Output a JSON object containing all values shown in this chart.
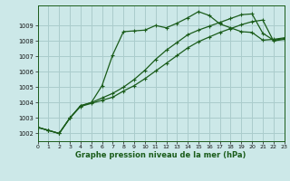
{
  "title": "Graphe pression niveau de la mer (hPa)",
  "bg": "#cce8e8",
  "grid_color": "#aacccc",
  "lc_dark": "#1a5c1a",
  "lc_light": "#2e7d2e",
  "xlim": [
    0,
    23
  ],
  "ylim": [
    1001.5,
    1010.3
  ],
  "yticks": [
    1002,
    1003,
    1004,
    1005,
    1006,
    1007,
    1008,
    1009
  ],
  "xticks": [
    0,
    1,
    2,
    3,
    4,
    5,
    6,
    7,
    8,
    9,
    10,
    11,
    12,
    13,
    14,
    15,
    16,
    17,
    18,
    19,
    20,
    21,
    22,
    23
  ],
  "s1": [
    1002.4,
    1002.2,
    1002.0,
    1003.0,
    1003.8,
    1004.0,
    1005.1,
    1007.1,
    1008.6,
    1008.65,
    1008.7,
    1009.0,
    1008.85,
    1009.15,
    1009.5,
    1009.9,
    1009.65,
    1009.1,
    1008.85,
    1008.6,
    1008.55,
    1008.05,
    1008.1,
    1008.2
  ],
  "s2": [
    1002.4,
    1002.2,
    1002.0,
    1003.0,
    1003.8,
    1004.0,
    1004.3,
    1004.6,
    1005.0,
    1005.5,
    1006.1,
    1006.8,
    1007.4,
    1007.9,
    1008.4,
    1008.7,
    1008.95,
    1009.2,
    1009.45,
    1009.7,
    1009.75,
    1008.5,
    1008.05,
    1008.15
  ],
  "s3": [
    1002.4,
    1002.2,
    1002.0,
    1003.0,
    1003.75,
    1003.95,
    1004.15,
    1004.35,
    1004.75,
    1005.1,
    1005.55,
    1006.05,
    1006.55,
    1007.05,
    1007.55,
    1007.95,
    1008.25,
    1008.55,
    1008.8,
    1009.05,
    1009.25,
    1009.35,
    1008.0,
    1008.1
  ]
}
